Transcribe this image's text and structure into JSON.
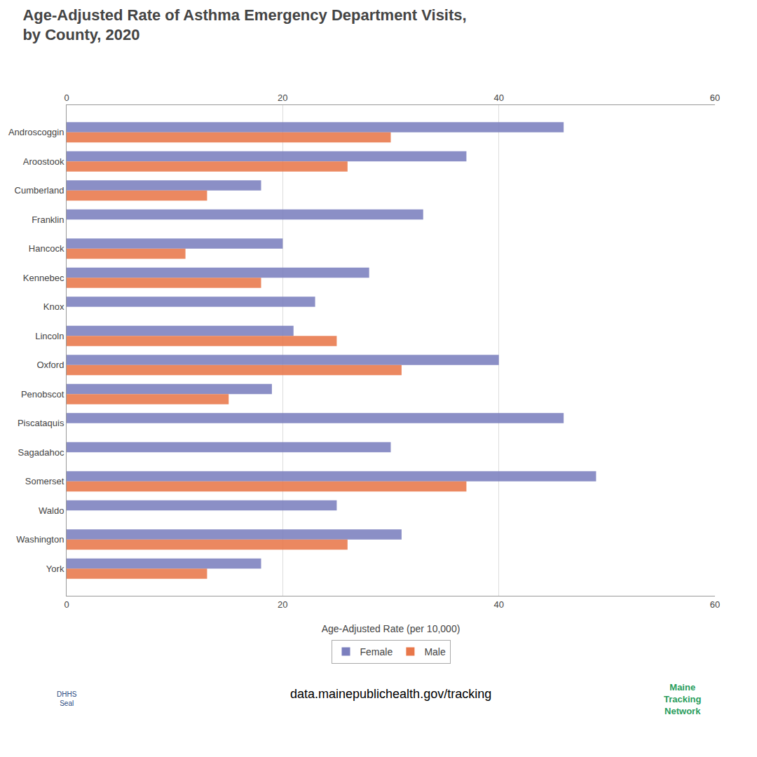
{
  "chart_data": {
    "type": "bar",
    "orientation": "horizontal",
    "title": "Age-Adjusted Rate of Asthma Emergency Department Visits,\nby County, 2020",
    "xlabel": "Age-Adjusted Rate (per 10,000)",
    "categories": [
      "Androscoggin",
      "Aroostook",
      "Cumberland",
      "Franklin",
      "Hancock",
      "Kennebec",
      "Knox",
      "Lincoln",
      "Oxford",
      "Penobscot",
      "Piscataquis",
      "Sagadahoc",
      "Somerset",
      "Waldo",
      "Washington",
      "York"
    ],
    "series": [
      {
        "name": "Female",
        "color": "#7b7fbe",
        "values": [
          46,
          37,
          18,
          33,
          20,
          28,
          23,
          21,
          40,
          19,
          46,
          30,
          49,
          25,
          31,
          18
        ]
      },
      {
        "name": "Male",
        "color": "#e8774a",
        "values": [
          30,
          26,
          13,
          null,
          11,
          18,
          null,
          25,
          31,
          15,
          null,
          null,
          37,
          null,
          26,
          13
        ]
      }
    ],
    "xlim": [
      0,
      60
    ],
    "xticks": [
      0,
      20,
      40,
      60
    ],
    "grid": true,
    "legend": "bottom",
    "annotations": [
      {
        "text": "data.mainepublichealth.gov/tracking"
      },
      {
        "text": "DHHS\nSeal"
      },
      {
        "text": "Maine\nTracking\nNetwork"
      }
    ]
  }
}
